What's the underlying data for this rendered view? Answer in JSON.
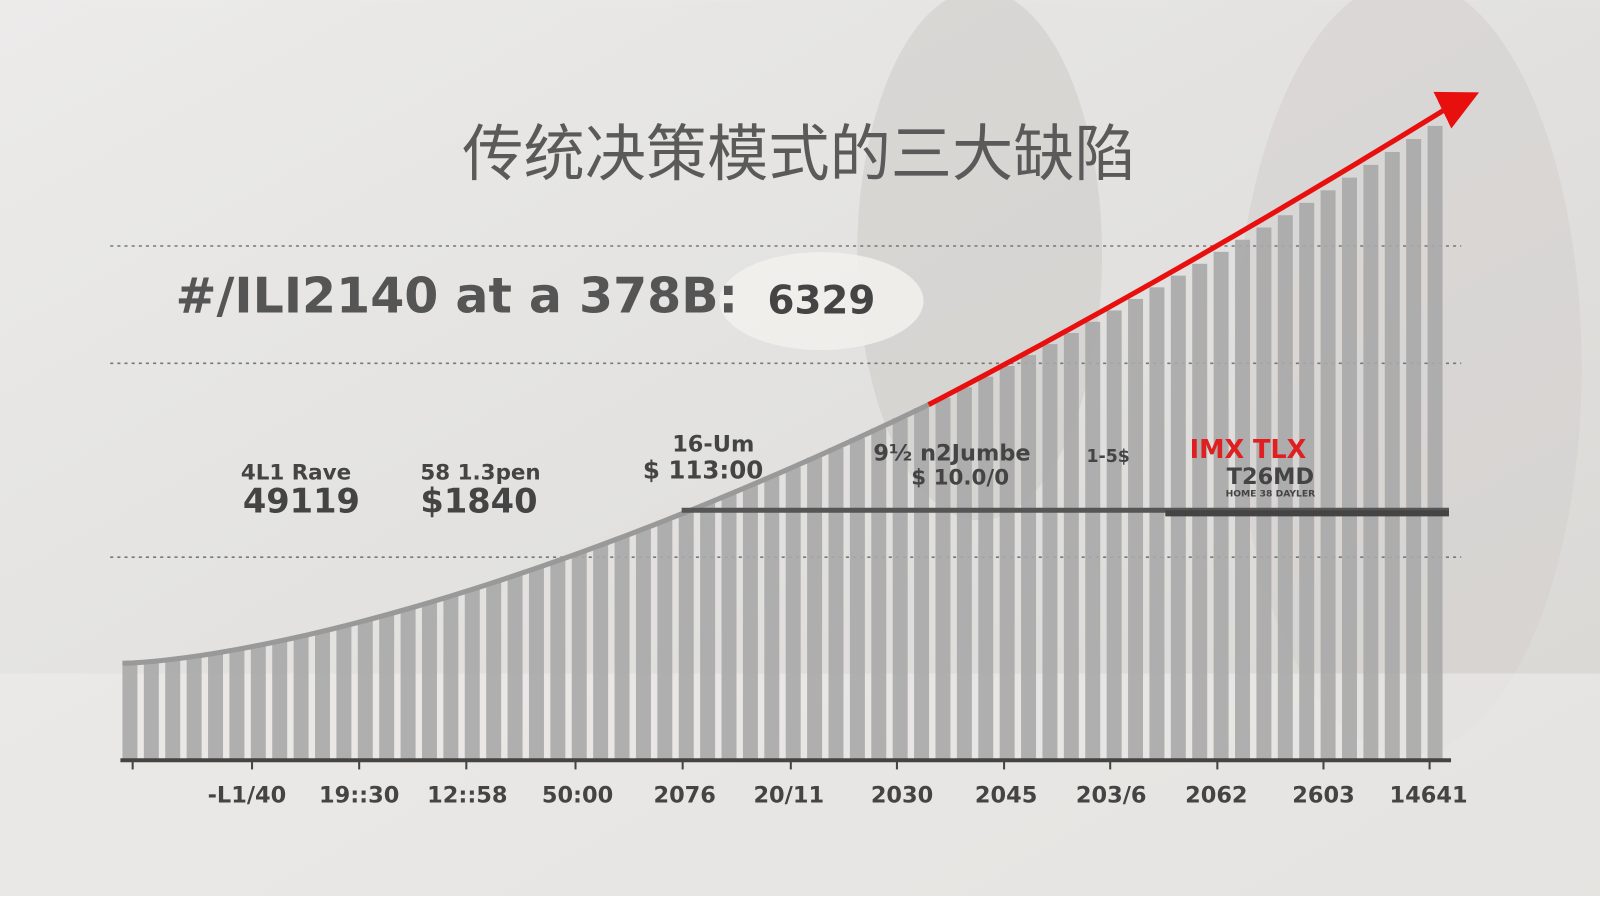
{
  "title": "传统决策模式的三大缺陷",
  "headline": {
    "text": "#/ILI2140 at a 378B:",
    "value": "6329"
  },
  "callouts": [
    {
      "label": "4L1 Rave",
      "value": "49119"
    },
    {
      "label": "58 1.3pen",
      "value": "$1840"
    },
    {
      "label": "16-Um",
      "value": "$ 113:00"
    },
    {
      "label": "9½ n2Jumbe",
      "value": "$ 10.0/0"
    },
    {
      "label": "1-5$"
    },
    {
      "label": "IMX TLX",
      "value": "T26MD",
      "note": "HOME 38 DAYLER"
    }
  ],
  "x_axis": [
    "-L1/40",
    "19::30",
    "12::58",
    "50:00",
    "2076",
    "20/11",
    "2030",
    "2045",
    "203/6",
    "2062",
    "2603",
    "14641"
  ]
}
